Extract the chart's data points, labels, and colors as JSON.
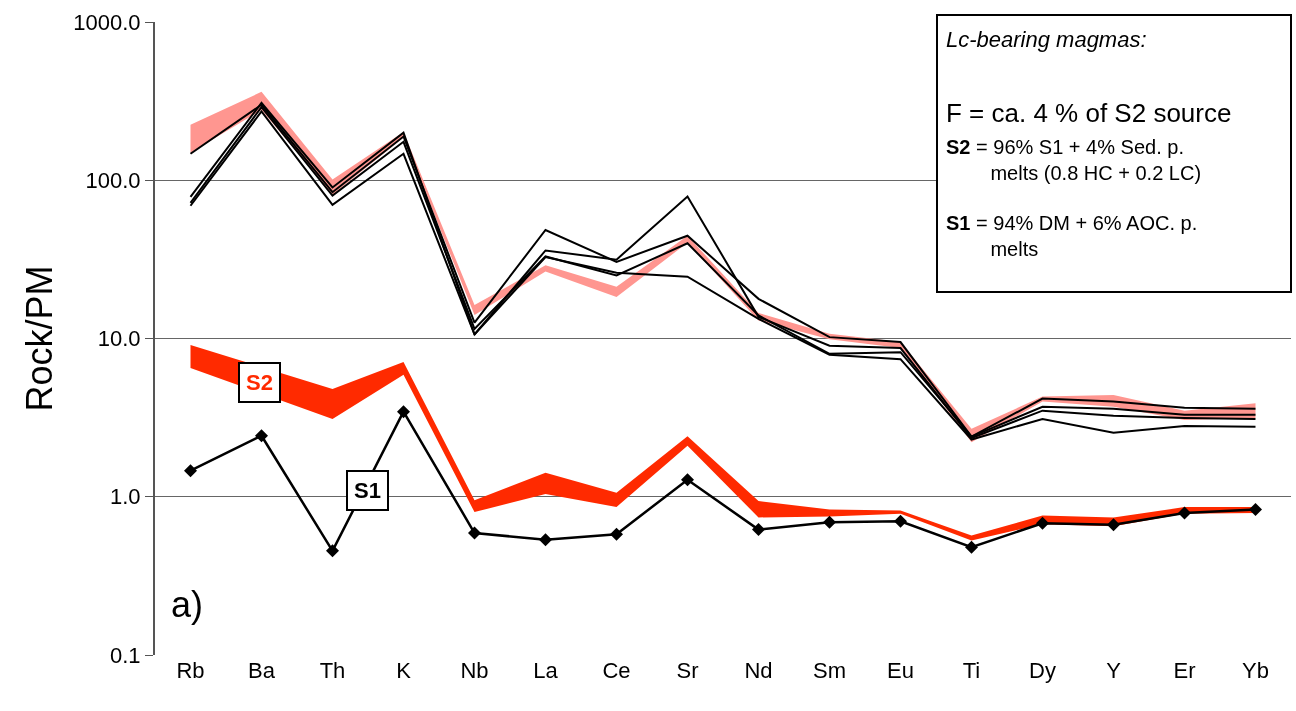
{
  "chart_data": {
    "type": "line",
    "ylabel": "Rock/PM",
    "categories": [
      "Rb",
      "Ba",
      "Th",
      "K",
      "Nb",
      "La",
      "Ce",
      "Sr",
      "Nd",
      "Sm",
      "Eu",
      "Ti",
      "Dy",
      "Y",
      "Er",
      "Yb"
    ],
    "log": true,
    "ylim": [
      0.1,
      1000
    ],
    "yticks": [
      {
        "value": 0.1,
        "label": "0.1"
      },
      {
        "value": 1,
        "label": "1.0"
      },
      {
        "value": 10,
        "label": "10.0"
      },
      {
        "value": 100,
        "label": "100.0"
      },
      {
        "value": 1000,
        "label": "1000.0"
      }
    ],
    "grid": "y",
    "legend": false,
    "series": [
      {
        "color": "#ff9690",
        "values": [
          null,
          null,
          null,
          null,
          null,
          null,
          null,
          null,
          null,
          null,
          null,
          null,
          null,
          null,
          null,
          null
        ],
        "lower": [
          149,
          278,
          81,
          186,
          14.1,
          26.5,
          18.3,
          40.3,
          13,
          9.9,
          8.7,
          2.21,
          4.0,
          3.7,
          3.06,
          3.15
        ],
        "upper": [
          224,
          362,
          101,
          202,
          16.3,
          29,
          21.2,
          44.6,
          14.5,
          10.7,
          9.5,
          2.69,
          4.3,
          4.4,
          3.5,
          3.9
        ]
      },
      {
        "type": "line",
        "color": "#000000",
        "marker": "none",
        "values": [
          147,
          300,
          84,
          189,
          12.6,
          48.5,
          30.5,
          44.6,
          17.8,
          10.2,
          9.5,
          2.4,
          4.17,
          4.0,
          3.65,
          3.6
        ]
      },
      {
        "type": "line",
        "color": "#000000",
        "marker": "none",
        "values": [
          78.6,
          308,
          90,
          200,
          10.6,
          36,
          31.5,
          79,
          13.7,
          9.0,
          8.7,
          2.35,
          3.5,
          3.25,
          3.15,
          3.1
        ]
      },
      {
        "type": "line",
        "color": "#000000",
        "marker": "none",
        "values": [
          69,
          272,
          70,
          147,
          10.6,
          32.7,
          26,
          24.6,
          13.3,
          7.9,
          7.4,
          2.3,
          3.1,
          2.54,
          2.8,
          2.77
        ]
      },
      {
        "type": "line",
        "color": "#000000",
        "marker": "none",
        "values": [
          72,
          290,
          80,
          175,
          11.5,
          33,
          25,
          40,
          14,
          8.0,
          8.2,
          2.4,
          3.7,
          3.6,
          3.3,
          3.3
        ]
      },
      {
        "name": "S2",
        "color": "#ff2a00",
        "values": [
          null,
          null,
          null,
          null,
          null,
          null,
          null,
          null,
          null,
          null,
          null,
          null,
          null,
          null,
          null,
          null
        ],
        "lower": [
          6.5,
          null,
          3.1,
          5.9,
          0.8,
          1.04,
          0.86,
          2.1,
          0.74,
          0.75,
          0.78,
          0.53,
          0.67,
          0.65,
          0.78,
          0.79
        ],
        "upper": [
          9.1,
          null,
          4.8,
          7.1,
          0.95,
          1.42,
          1.06,
          2.41,
          0.94,
          0.83,
          0.82,
          0.57,
          0.76,
          0.74,
          0.86,
          0.86
        ]
      },
      {
        "name": "S1",
        "color": "#000000",
        "marker": "diamond",
        "values": [
          1.46,
          2.43,
          0.455,
          3.45,
          0.59,
          0.535,
          0.58,
          1.28,
          0.62,
          0.69,
          0.7,
          0.48,
          0.68,
          0.665,
          0.79,
          0.83
        ]
      }
    ],
    "annotations": [
      "Lc-bearing magmas:",
      "F = ca. 4 % of S2 source",
      "S2 = 96% S1 + 4% Sed. p. melts (0.8 HC + 0.2 LC)",
      "S1 = 94% DM + 6% AOC. p. melts",
      "a)"
    ]
  }
}
